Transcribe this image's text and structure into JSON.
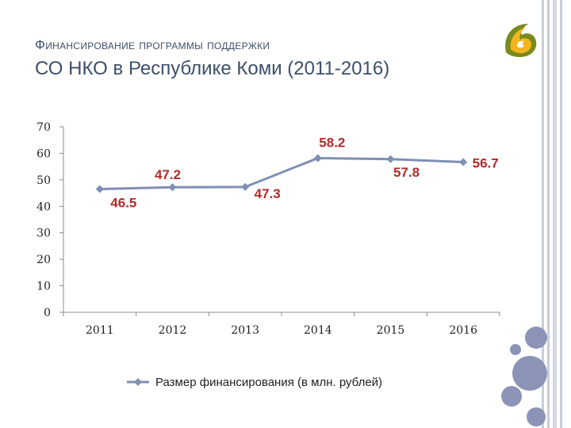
{
  "title": {
    "line1": "Финансирование программы поддержки",
    "line2": "СО НКО в Республике Коми (2011-2016)"
  },
  "logo": {
    "icon": "logo-icon",
    "glyph": "Б"
  },
  "colors": {
    "title": "#3d4f6a",
    "series": "#7f8fb4",
    "datalabel": "#b32b2b",
    "accent_circle": "#8b94b6",
    "frame": "#c8cdd9"
  },
  "chart_data": {
    "type": "line",
    "categories": [
      "2011",
      "2012",
      "2013",
      "2014",
      "2015",
      "2016"
    ],
    "series": [
      {
        "name": "Размер финансирования (в млн. рублей)",
        "values": [
          46.5,
          47.2,
          47.3,
          58.2,
          57.8,
          56.7
        ]
      }
    ],
    "data_labels": [
      "46.5",
      "47.2",
      "47.3",
      "58.2",
      "57.8",
      "56.7"
    ],
    "yticks": [
      "0",
      "10",
      "20",
      "30",
      "40",
      "50",
      "60",
      "70"
    ],
    "ylim": [
      0,
      70
    ],
    "xlabel": "",
    "ylabel": "",
    "legend": "bottom",
    "grid": false
  }
}
